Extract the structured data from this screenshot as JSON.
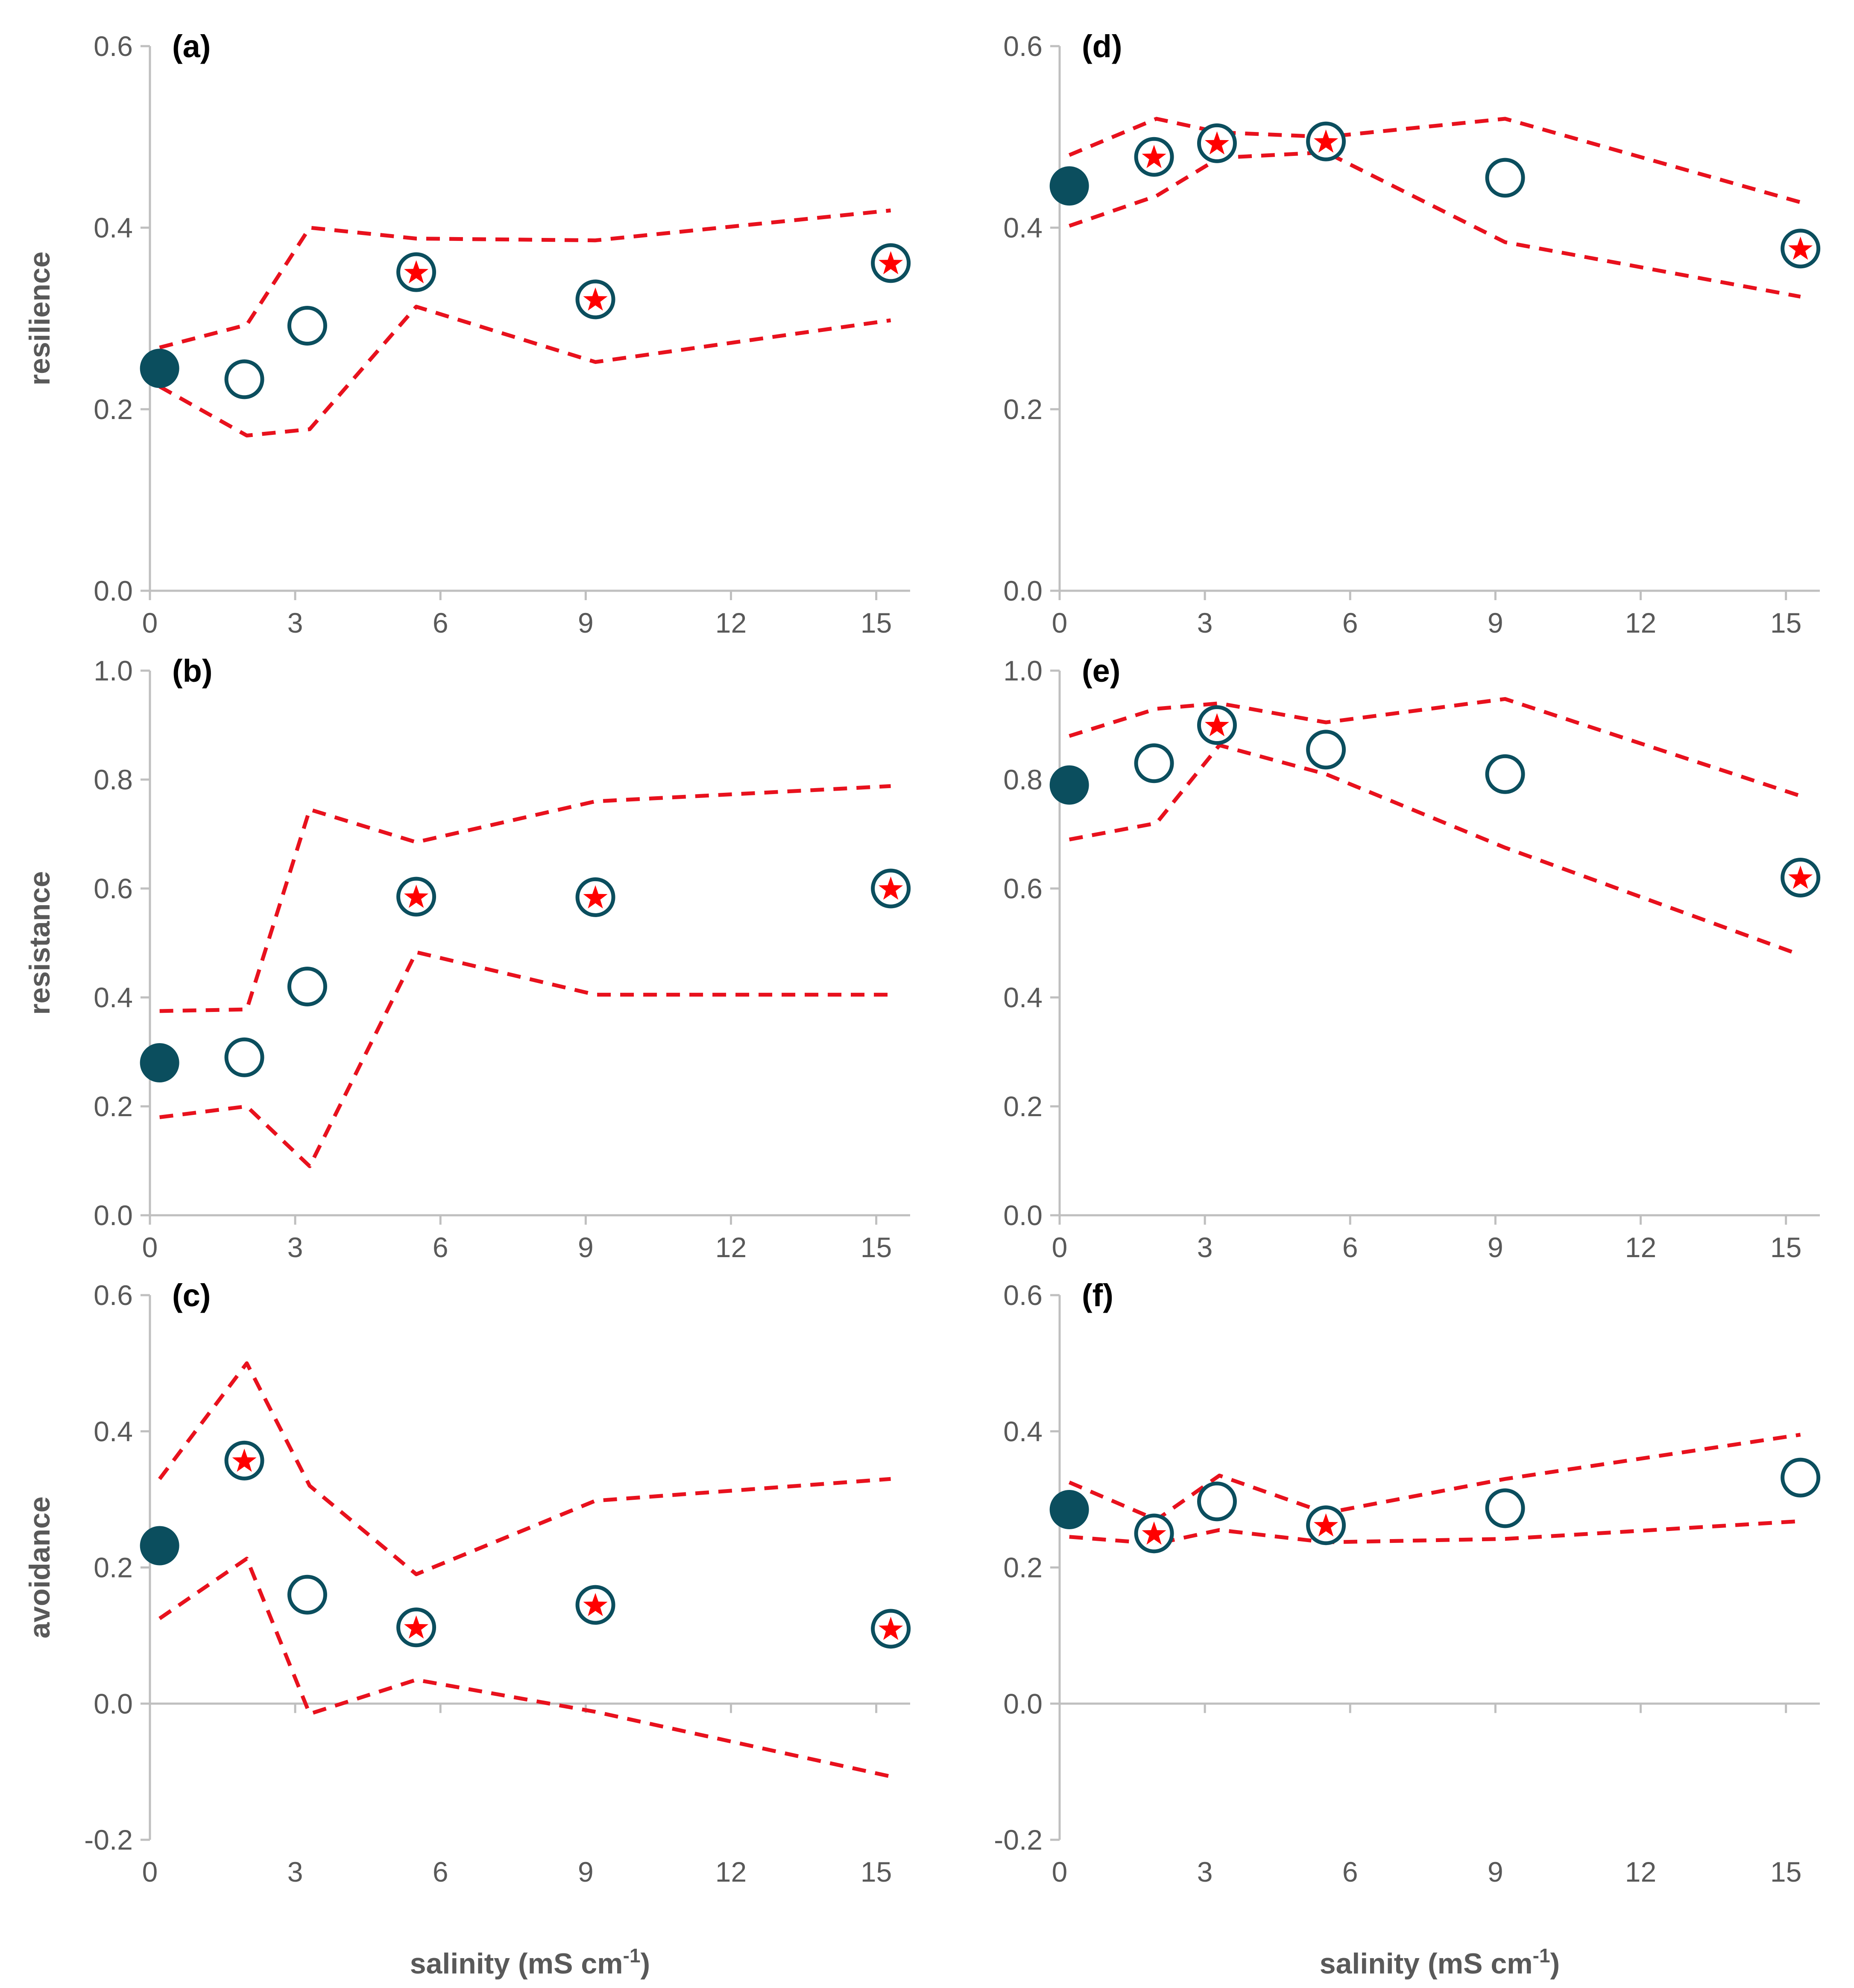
{
  "figure": {
    "xlabel_main": "salinity (mS cm",
    "xlabel_sup": "-1",
    "xlabel_close": ")"
  },
  "colors": {
    "axis": "#bfbfbf",
    "tick_text": "#595959",
    "marker": "#0b4e5e",
    "band": "#e8111d",
    "star": "#ff0000"
  },
  "chart_data": [
    {
      "id": "a",
      "panel": "(a)",
      "type": "scatter",
      "ylabel": "resilience",
      "xlim": [
        0,
        15.7
      ],
      "xticks": [
        0,
        3,
        6,
        9,
        12,
        15
      ],
      "ylim": [
        0,
        0.6
      ],
      "yticks": [
        "0.0",
        "0.2",
        "0.4",
        "0.6"
      ],
      "yvals": [
        0,
        0.2,
        0.4,
        0.6
      ],
      "points": [
        {
          "x": 0.2,
          "y": 0.245,
          "type": "filled"
        },
        {
          "x": 1.95,
          "y": 0.233,
          "type": "open"
        },
        {
          "x": 3.25,
          "y": 0.292,
          "type": "open"
        },
        {
          "x": 5.5,
          "y": 0.351,
          "type": "star"
        },
        {
          "x": 9.2,
          "y": 0.321,
          "type": "star"
        },
        {
          "x": 15.3,
          "y": 0.361,
          "type": "star"
        }
      ],
      "upper": [
        [
          0.2,
          0.268
        ],
        [
          2.0,
          0.293
        ],
        [
          3.3,
          0.4
        ],
        [
          5.5,
          0.388
        ],
        [
          9.2,
          0.386
        ],
        [
          15.3,
          0.419
        ]
      ],
      "lower": [
        [
          0.2,
          0.225
        ],
        [
          2.0,
          0.171
        ],
        [
          3.3,
          0.178
        ],
        [
          5.5,
          0.313
        ],
        [
          9.2,
          0.252
        ],
        [
          15.3,
          0.298
        ]
      ]
    },
    {
      "id": "b",
      "panel": "(b)",
      "type": "scatter",
      "ylabel": "resistance",
      "xlim": [
        0,
        15.7
      ],
      "xticks": [
        0,
        3,
        6,
        9,
        12,
        15
      ],
      "ylim": [
        0,
        1.0
      ],
      "yticks": [
        "0.0",
        "0.2",
        "0.4",
        "0.6",
        "0.8",
        "1.0"
      ],
      "yvals": [
        0,
        0.2,
        0.4,
        0.6,
        0.8,
        1.0
      ],
      "points": [
        {
          "x": 0.2,
          "y": 0.28,
          "type": "filled"
        },
        {
          "x": 1.95,
          "y": 0.29,
          "type": "open"
        },
        {
          "x": 3.25,
          "y": 0.42,
          "type": "open"
        },
        {
          "x": 5.5,
          "y": 0.585,
          "type": "star"
        },
        {
          "x": 9.2,
          "y": 0.584,
          "type": "star"
        },
        {
          "x": 15.3,
          "y": 0.6,
          "type": "star"
        }
      ],
      "upper": [
        [
          0.2,
          0.375
        ],
        [
          2.0,
          0.378
        ],
        [
          3.3,
          0.745
        ],
        [
          5.5,
          0.685
        ],
        [
          9.2,
          0.76
        ],
        [
          15.3,
          0.788
        ]
      ],
      "lower": [
        [
          0.2,
          0.18
        ],
        [
          2.0,
          0.2
        ],
        [
          3.3,
          0.09
        ],
        [
          5.5,
          0.483
        ],
        [
          9.2,
          0.405
        ],
        [
          15.3,
          0.405
        ]
      ]
    },
    {
      "id": "c",
      "panel": "(c)",
      "type": "scatter",
      "ylabel": "avoidance",
      "xlim": [
        0,
        15.7
      ],
      "xticks": [
        0,
        3,
        6,
        9,
        12,
        15
      ],
      "ylim": [
        -0.2,
        0.6
      ],
      "yticks": [
        "-0.2",
        "0.0",
        "0.2",
        "0.4",
        "0.6"
      ],
      "yvals": [
        -0.2,
        0,
        0.2,
        0.4,
        0.6
      ],
      "points": [
        {
          "x": 0.2,
          "y": 0.232,
          "type": "filled"
        },
        {
          "x": 1.95,
          "y": 0.357,
          "type": "star"
        },
        {
          "x": 3.25,
          "y": 0.16,
          "type": "open"
        },
        {
          "x": 5.5,
          "y": 0.112,
          "type": "star"
        },
        {
          "x": 9.2,
          "y": 0.145,
          "type": "star"
        },
        {
          "x": 15.3,
          "y": 0.11,
          "type": "star"
        }
      ],
      "upper": [
        [
          0.2,
          0.33
        ],
        [
          2.0,
          0.5
        ],
        [
          3.3,
          0.32
        ],
        [
          5.5,
          0.19
        ],
        [
          9.2,
          0.298
        ],
        [
          15.3,
          0.33
        ]
      ],
      "lower": [
        [
          0.2,
          0.125
        ],
        [
          2.0,
          0.213
        ],
        [
          3.3,
          -0.015
        ],
        [
          5.5,
          0.035
        ],
        [
          9.2,
          -0.012
        ],
        [
          15.3,
          -0.107
        ]
      ]
    },
    {
      "id": "d",
      "panel": "(d)",
      "type": "scatter",
      "ylabel": "",
      "xlim": [
        0,
        15.7
      ],
      "xticks": [
        0,
        3,
        6,
        9,
        12,
        15
      ],
      "ylim": [
        0,
        0.6
      ],
      "yticks": [
        "0.0",
        "0.2",
        "0.4",
        "0.6"
      ],
      "yvals": [
        0,
        0.2,
        0.4,
        0.6
      ],
      "points": [
        {
          "x": 0.2,
          "y": 0.446,
          "type": "filled"
        },
        {
          "x": 1.95,
          "y": 0.478,
          "type": "star"
        },
        {
          "x": 3.25,
          "y": 0.493,
          "type": "star"
        },
        {
          "x": 5.5,
          "y": 0.495,
          "type": "star"
        },
        {
          "x": 9.2,
          "y": 0.455,
          "type": "open"
        },
        {
          "x": 15.3,
          "y": 0.377,
          "type": "star"
        }
      ],
      "upper": [
        [
          0.2,
          0.48
        ],
        [
          2.0,
          0.52
        ],
        [
          3.3,
          0.505
        ],
        [
          5.5,
          0.5
        ],
        [
          9.2,
          0.52
        ],
        [
          15.3,
          0.428
        ]
      ],
      "lower": [
        [
          0.2,
          0.402
        ],
        [
          2.0,
          0.435
        ],
        [
          3.3,
          0.477
        ],
        [
          5.5,
          0.483
        ],
        [
          9.2,
          0.384
        ],
        [
          15.3,
          0.324
        ]
      ]
    },
    {
      "id": "e",
      "panel": "(e)",
      "type": "scatter",
      "ylabel": "",
      "xlim": [
        0,
        15.7
      ],
      "xticks": [
        0,
        3,
        6,
        9,
        12,
        15
      ],
      "ylim": [
        0,
        1.0
      ],
      "yticks": [
        "0.0",
        "0.2",
        "0.4",
        "0.6",
        "0.8",
        "1.0"
      ],
      "yvals": [
        0,
        0.2,
        0.4,
        0.6,
        0.8,
        1.0
      ],
      "points": [
        {
          "x": 0.2,
          "y": 0.79,
          "type": "filled"
        },
        {
          "x": 1.95,
          "y": 0.83,
          "type": "open"
        },
        {
          "x": 3.25,
          "y": 0.9,
          "type": "star"
        },
        {
          "x": 5.5,
          "y": 0.855,
          "type": "open"
        },
        {
          "x": 9.2,
          "y": 0.81,
          "type": "open"
        },
        {
          "x": 15.3,
          "y": 0.62,
          "type": "star"
        }
      ],
      "upper": [
        [
          0.2,
          0.88
        ],
        [
          2.0,
          0.93
        ],
        [
          3.3,
          0.94
        ],
        [
          5.5,
          0.905
        ],
        [
          9.2,
          0.948
        ],
        [
          15.3,
          0.77
        ]
      ],
      "lower": [
        [
          0.2,
          0.69
        ],
        [
          2.0,
          0.72
        ],
        [
          3.3,
          0.863
        ],
        [
          5.5,
          0.81
        ],
        [
          9.2,
          0.675
        ],
        [
          15.3,
          0.478
        ]
      ]
    },
    {
      "id": "f",
      "panel": "(f)",
      "type": "scatter",
      "ylabel": "",
      "xlim": [
        0,
        15.7
      ],
      "xticks": [
        0,
        3,
        6,
        9,
        12,
        15
      ],
      "ylim": [
        -0.2,
        0.6
      ],
      "yticks": [
        "-0.2",
        "0.0",
        "0.2",
        "0.4",
        "0.6"
      ],
      "yvals": [
        -0.2,
        0,
        0.2,
        0.4,
        0.6
      ],
      "points": [
        {
          "x": 0.2,
          "y": 0.285,
          "type": "filled"
        },
        {
          "x": 1.95,
          "y": 0.25,
          "type": "star"
        },
        {
          "x": 3.25,
          "y": 0.297,
          "type": "open"
        },
        {
          "x": 5.5,
          "y": 0.262,
          "type": "star"
        },
        {
          "x": 9.2,
          "y": 0.287,
          "type": "open"
        },
        {
          "x": 15.3,
          "y": 0.332,
          "type": "open"
        }
      ],
      "upper": [
        [
          0.2,
          0.325
        ],
        [
          2.0,
          0.27
        ],
        [
          3.3,
          0.335
        ],
        [
          5.5,
          0.28
        ],
        [
          9.2,
          0.33
        ],
        [
          15.3,
          0.395
        ]
      ],
      "lower": [
        [
          0.2,
          0.245
        ],
        [
          2.0,
          0.235
        ],
        [
          3.3,
          0.255
        ],
        [
          5.5,
          0.237
        ],
        [
          9.2,
          0.242
        ],
        [
          15.3,
          0.268
        ]
      ]
    }
  ]
}
